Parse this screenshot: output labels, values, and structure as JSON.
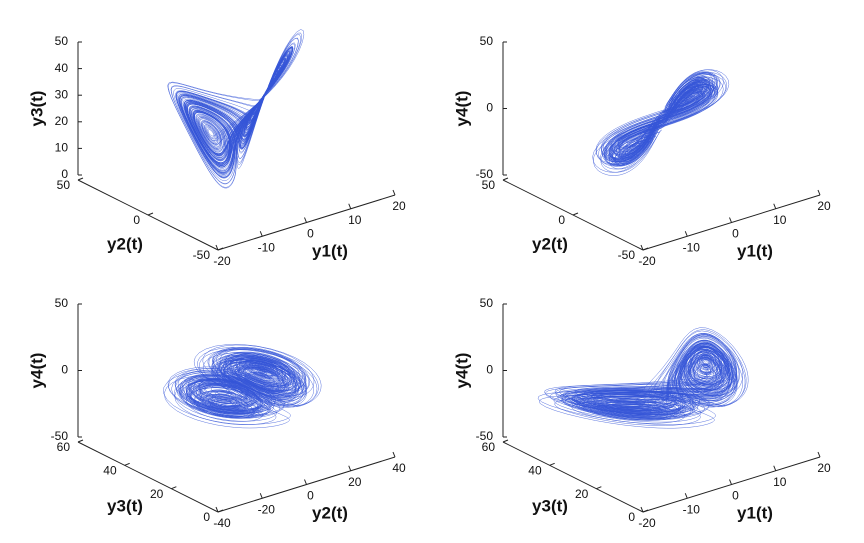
{
  "chart_data": [
    {
      "type": "line3d",
      "xlabel": "y1(t)",
      "ylabel": "y2(t)",
      "zlabel": "y3(t)",
      "color": "#3556d8",
      "xlim": [
        -20,
        20
      ],
      "xticks": [
        -20,
        -10,
        0,
        10,
        20
      ],
      "ylim": [
        -50,
        50
      ],
      "yticks": [
        -50,
        0,
        50
      ],
      "zlim": [
        0,
        50
      ],
      "zticks": [
        0,
        10,
        20,
        30,
        40,
        50
      ]
    },
    {
      "type": "line3d",
      "xlabel": "y1(t)",
      "ylabel": "y2(t)",
      "zlabel": "y4(t)",
      "color": "#3556d8",
      "xlim": [
        -20,
        20
      ],
      "xticks": [
        -20,
        -10,
        0,
        10,
        20
      ],
      "ylim": [
        -50,
        50
      ],
      "yticks": [
        -50,
        0,
        50
      ],
      "zlim": [
        -50,
        50
      ],
      "zticks": [
        -50,
        0,
        50
      ]
    },
    {
      "type": "line3d",
      "xlabel": "y2(t)",
      "ylabel": "y3(t)",
      "zlabel": "y4(t)",
      "color": "#3556d8",
      "xlim": [
        -40,
        40
      ],
      "xticks": [
        -40,
        -20,
        0,
        20,
        40
      ],
      "ylim": [
        0,
        60
      ],
      "yticks": [
        0,
        20,
        40,
        60
      ],
      "zlim": [
        -50,
        50
      ],
      "zticks": [
        -50,
        0,
        50
      ]
    },
    {
      "type": "line3d",
      "xlabel": "y1(t)",
      "ylabel": "y3(t)",
      "zlabel": "y4(t)",
      "color": "#3556d8",
      "xlim": [
        -20,
        20
      ],
      "xticks": [
        -20,
        -10,
        0,
        10,
        20
      ],
      "ylim": [
        0,
        60
      ],
      "yticks": [
        0,
        20,
        40,
        60
      ],
      "zlim": [
        -50,
        50
      ],
      "zticks": [
        -50,
        0,
        50
      ]
    }
  ]
}
